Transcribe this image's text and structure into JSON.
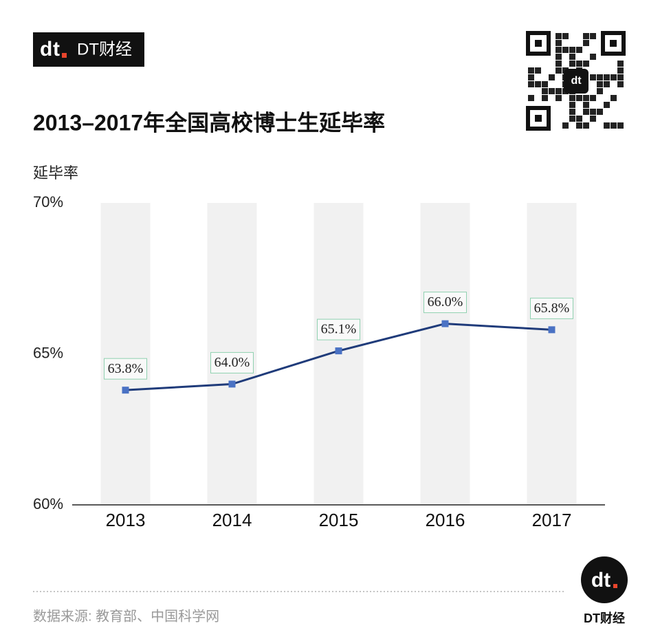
{
  "header": {
    "logo": "DT财经"
  },
  "chart_data": {
    "type": "line",
    "title": "2013–2017年全国高校博士生延毕率",
    "y_label": "延毕率",
    "categories": [
      "2013",
      "2014",
      "2015",
      "2016",
      "2017"
    ],
    "series": [
      {
        "name": "延毕率",
        "color": "#1f3b7a",
        "marker_color": "#4a72c4",
        "values": [
          63.8,
          64.0,
          65.1,
          66.0,
          65.8
        ],
        "value_labels": [
          "63.8%",
          "64.0%",
          "65.1%",
          "66.0%",
          "65.8%"
        ]
      }
    ],
    "ylim": [
      60,
      70
    ],
    "yticks": [
      {
        "value": 60,
        "label": "60%"
      },
      {
        "value": 65,
        "label": "65%"
      },
      {
        "value": 70,
        "label": "70%"
      }
    ],
    "category_bands": true
  },
  "footer": {
    "source": "数据来源: 教育部、中国科学网",
    "logo_mark": "dt",
    "logo": "DT财经"
  }
}
